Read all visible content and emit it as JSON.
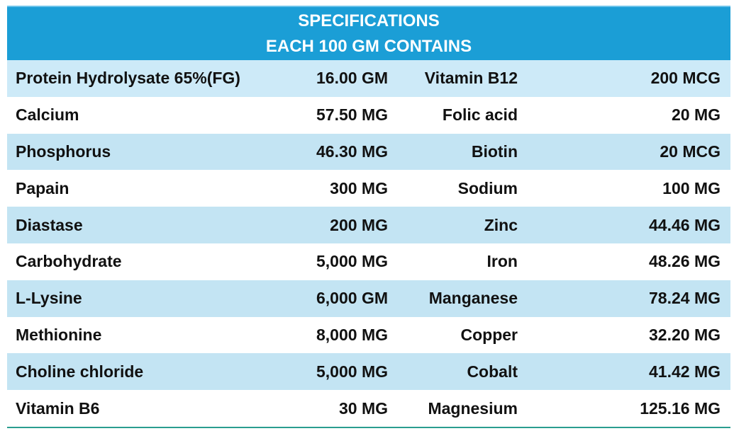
{
  "header": {
    "title": [
      "SPECIFICATIONS",
      "EACH 100 GM CONTAINS"
    ]
  },
  "table": {
    "rows": [
      [
        "Protein Hydrolysate 65%(FG)",
        "16.00 GM",
        "Vitamin B12",
        "200 MCG"
      ],
      [
        "Calcium",
        "57.50 MG",
        "Folic acid",
        "20 MG"
      ],
      [
        "Phosphorus",
        "46.30 MG",
        "Biotin",
        "20 MCG"
      ],
      [
        "Papain",
        "300 MG",
        "Sodium",
        "100 MG"
      ],
      [
        "Diastase",
        "200 MG",
        "Zinc",
        "44.46 MG"
      ],
      [
        "Carbohydrate",
        "5,000 MG",
        "Iron",
        "48.26 MG"
      ],
      [
        "L-Lysine",
        "6,000 GM",
        "Manganese",
        "78.24 MG"
      ],
      [
        "Methionine",
        "8,000 MG",
        "Copper",
        "32.20 MG"
      ],
      [
        "Choline chloride",
        "5,000 MG",
        "Cobalt",
        "41.42 MG"
      ],
      [
        "Vitamin B6",
        "30 MG",
        "Magnesium",
        "125.16 MG"
      ]
    ]
  }
}
